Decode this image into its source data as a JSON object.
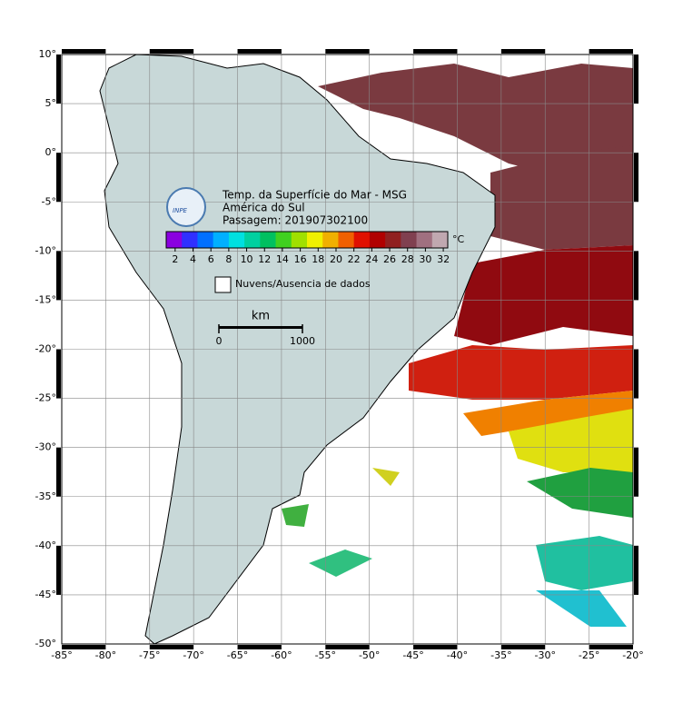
{
  "map": {
    "title_lines": [
      "Temp. da Superfície do Mar - MSG",
      "América do Sul",
      "Passagem: 201907302100"
    ],
    "logo_text": "INPE",
    "xlim": [
      -85,
      -20
    ],
    "ylim": [
      -50,
      10
    ],
    "xticks": [
      {
        "value": -85,
        "label": "-85°"
      },
      {
        "value": -80,
        "label": "-80°"
      },
      {
        "value": -75,
        "label": "-75°"
      },
      {
        "value": -70,
        "label": "-70°"
      },
      {
        "value": -65,
        "label": "-65°"
      },
      {
        "value": -60,
        "label": "-60°"
      },
      {
        "value": -55,
        "label": "-55°"
      },
      {
        "value": -50,
        "label": "-50°"
      },
      {
        "value": -45,
        "label": "-45°"
      },
      {
        "value": -40,
        "label": "-40°"
      },
      {
        "value": -35,
        "label": "-35°"
      },
      {
        "value": -30,
        "label": "-30°"
      },
      {
        "value": -25,
        "label": "-25°"
      },
      {
        "value": -20,
        "label": "-20°"
      }
    ],
    "yticks": [
      {
        "value": 10,
        "label": "10°"
      },
      {
        "value": 5,
        "label": "5°"
      },
      {
        "value": 0,
        "label": "0°"
      },
      {
        "value": -5,
        "label": "-5°"
      },
      {
        "value": -10,
        "label": "-10°"
      },
      {
        "value": -15,
        "label": "-15°"
      },
      {
        "value": -20,
        "label": "-20°"
      },
      {
        "value": -25,
        "label": "-25°"
      },
      {
        "value": -30,
        "label": "-30°"
      },
      {
        "value": -35,
        "label": "-35°"
      },
      {
        "value": -40,
        "label": "-40°"
      },
      {
        "value": -45,
        "label": "-45°"
      },
      {
        "value": -50,
        "label": "-50°"
      }
    ],
    "grid": true
  },
  "colorbar": {
    "unit": "°C",
    "range": [
      1,
      32.5
    ],
    "ticks": [
      2,
      4,
      6,
      8,
      10,
      12,
      14,
      16,
      18,
      20,
      22,
      24,
      26,
      28,
      30,
      32
    ],
    "colors": [
      "#8a00e0",
      "#3030ff",
      "#0070ff",
      "#00b0ff",
      "#00e0e0",
      "#00d0a0",
      "#00c060",
      "#40d020",
      "#a0e000",
      "#f0f000",
      "#f0b000",
      "#f06000",
      "#e01000",
      "#b00000",
      "#902020",
      "#804050",
      "#a07080",
      "#c0a8b0"
    ]
  },
  "legend": {
    "label": "Nuvens/Ausencia de dados"
  },
  "scale_bar": {
    "unit": "km",
    "ticks": [
      0,
      1000
    ]
  }
}
